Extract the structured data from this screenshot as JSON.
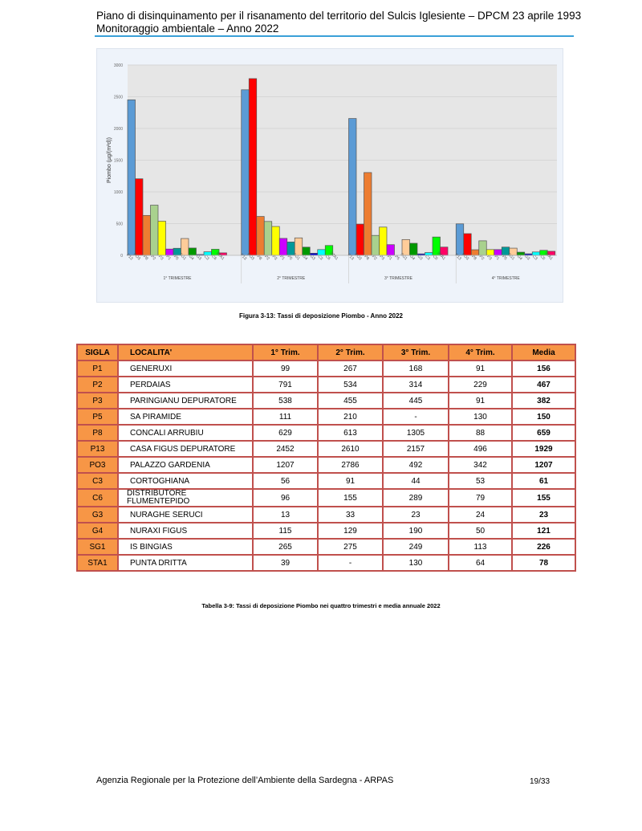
{
  "header": {
    "line1": "Piano di disinquinamento per il risanamento del territorio del Sulcis Iglesiente – DPCM 23 aprile 1993",
    "line2": "Monitoraggio ambientale – Anno 2022"
  },
  "chart_data": {
    "type": "bar",
    "ylabel": "Piombo (µg/(m²d))",
    "ylim": [
      0,
      3000
    ],
    "yticks": [
      "0",
      "500",
      "1000",
      "1500",
      "2000",
      "2500",
      "3000"
    ],
    "grid": true,
    "groups": [
      "1° TRIMESTRE",
      "2° TRIMESTRE",
      "3° TRIMESTRE",
      "4° TRIMESTRE"
    ],
    "categories": [
      "P13",
      "PO3",
      "P8",
      "P2",
      "P3",
      "P1",
      "P5",
      "SG1",
      "G4",
      "G3",
      "C3",
      "C6",
      "STA1"
    ],
    "colors": [
      "#5b9bd5",
      "#ff0000",
      "#ed7d31",
      "#a9d18e",
      "#ffff00",
      "#cc00ff",
      "#009999",
      "#ffcc99",
      "#009900",
      "#0000cc",
      "#00ffff",
      "#00ff00",
      "#ff0066"
    ],
    "values": [
      [
        2452,
        1207,
        629,
        791,
        538,
        99,
        111,
        265,
        115,
        13,
        56,
        96,
        39
      ],
      [
        2610,
        2786,
        613,
        534,
        455,
        267,
        210,
        275,
        129,
        33,
        91,
        155,
        null
      ],
      [
        2157,
        492,
        1305,
        314,
        445,
        168,
        null,
        249,
        190,
        23,
        44,
        289,
        130
      ],
      [
        496,
        342,
        88,
        229,
        91,
        91,
        130,
        113,
        50,
        24,
        53,
        79,
        64
      ]
    ]
  },
  "figure_caption": "Figura 3-13: Tassi di deposizione Piombo - Anno 2022",
  "table": {
    "headers": [
      "SIGLA",
      "LOCALITA'",
      "1° Trim.",
      "2° Trim.",
      "3° Trim.",
      "4° Trim.",
      "Media"
    ],
    "rows": [
      [
        "P1",
        "GENERUXI",
        "99",
        "267",
        "168",
        "91",
        "156"
      ],
      [
        "P2",
        "PERDAIAS",
        "791",
        "534",
        "314",
        "229",
        "467"
      ],
      [
        "P3",
        "PARINGIANU DEPURATORE",
        "538",
        "455",
        "445",
        "91",
        "382"
      ],
      [
        "P5",
        "SA PIRAMIDE",
        "111",
        "210",
        "-",
        "130",
        "150"
      ],
      [
        "P8",
        "CONCALI ARRUBIU",
        "629",
        "613",
        "1305",
        "88",
        "659"
      ],
      [
        "P13",
        "CASA FIGUS DEPURATORE",
        "2452",
        "2610",
        "2157",
        "496",
        "1929"
      ],
      [
        "PO3",
        "PALAZZO GARDENIA",
        "1207",
        "2786",
        "492",
        "342",
        "1207"
      ],
      [
        "C3",
        "CORTOGHIANA",
        "56",
        "91",
        "44",
        "53",
        "61"
      ],
      [
        "C6",
        "DISTRIBUTORE FLUMENTEPIDO",
        "96",
        "155",
        "289",
        "79",
        "155"
      ],
      [
        "G3",
        "NURAGHE SERUCI",
        "13",
        "33",
        "23",
        "24",
        "23"
      ],
      [
        "G4",
        "NURAXI FIGUS",
        "115",
        "129",
        "190",
        "50",
        "121"
      ],
      [
        "SG1",
        "IS BINGIAS",
        "265",
        "275",
        "249",
        "113",
        "226"
      ],
      [
        "STA1",
        "PUNTA DRITTA",
        "39",
        "-",
        "130",
        "64",
        "78"
      ]
    ]
  },
  "table_caption": "Tabella 3-9: Tassi di deposizione Piombo nei quattro trimestri e media annuale 2022",
  "footer": {
    "agency": "Agenzia Regionale per la Protezione dell’Ambiente della Sardegna - ARPAS",
    "page": "19/33"
  }
}
